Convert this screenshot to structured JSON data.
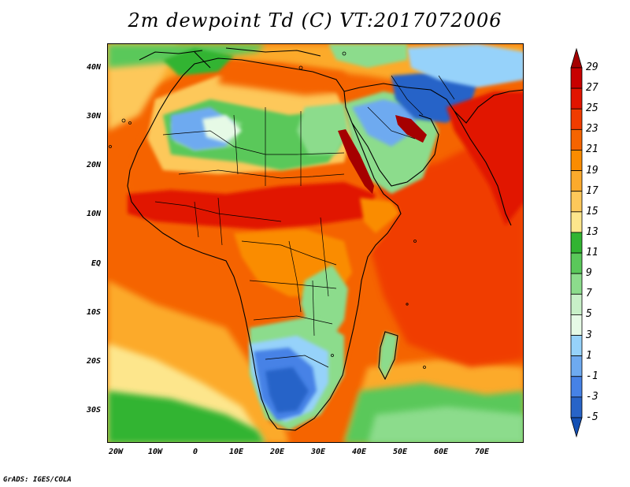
{
  "title": "2m dewpoint Td (C) VT:2017072006",
  "credit": "GrADS: IGES/COLA",
  "map": {
    "lat_ticks": [
      "40N",
      "30N",
      "20N",
      "10N",
      "EQ",
      "10S",
      "20S",
      "30S"
    ],
    "lon_ticks": [
      "20W",
      "10W",
      "0",
      "10E",
      "20E",
      "30E",
      "40E",
      "50E",
      "60E",
      "70E"
    ]
  },
  "colorbar": {
    "labels": [
      "29",
      "27",
      "25",
      "23",
      "21",
      "19",
      "17",
      "15",
      "13",
      "11",
      "9",
      "7",
      "5",
      "3",
      "1",
      "-1",
      "-3",
      "-5"
    ],
    "colors": [
      "#a50000",
      "#c80000",
      "#e11400",
      "#f03c00",
      "#f56400",
      "#fa8c00",
      "#fcaa2c",
      "#fdc85a",
      "#fde68c",
      "#32b432",
      "#5ac85a",
      "#8cdc8c",
      "#c8f0c8",
      "#e6fae6",
      "#96d2fa",
      "#6eaaf0",
      "#4682e6",
      "#2864c8",
      "#1450b4"
    ]
  }
}
